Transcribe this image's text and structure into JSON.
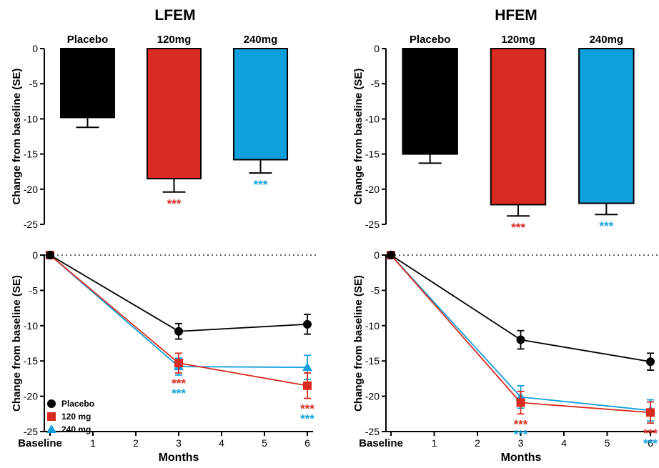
{
  "colors": {
    "placebo": "#000000",
    "mg120": "#d92b1f",
    "mg240": "#0ea0dd"
  },
  "chart_data": [
    {
      "id": "lfem-bar",
      "type": "bar",
      "title": "LFEM",
      "ylabel": "Change from baseline (SE)",
      "ylim": [
        -25,
        0
      ],
      "yticks": [
        0,
        -5,
        -10,
        -15,
        -20,
        -25
      ],
      "categories": [
        "Placebo",
        "120mg",
        "240mg"
      ],
      "values": [
        -9.8,
        -18.5,
        -15.8
      ],
      "errors": [
        1.4,
        1.9,
        1.9
      ],
      "significance": [
        "",
        "***",
        "***"
      ]
    },
    {
      "id": "hfem-bar",
      "type": "bar",
      "title": "HFEM",
      "ylabel": "Change from baseline (SE)",
      "ylim": [
        -25,
        0
      ],
      "yticks": [
        0,
        -5,
        -10,
        -15,
        -20,
        -25
      ],
      "categories": [
        "Placebo",
        "120mg",
        "240mg"
      ],
      "values": [
        -15.0,
        -22.2,
        -22.0
      ],
      "errors": [
        1.3,
        1.6,
        1.6
      ],
      "significance": [
        "",
        "***",
        "***"
      ]
    },
    {
      "id": "lfem-line",
      "type": "line",
      "xlabel": "Months",
      "ylabel": "Change from baseline (SE)",
      "ylim": [
        -25,
        0
      ],
      "yticks": [
        0,
        -5,
        -10,
        -15,
        -20,
        -25
      ],
      "xticks": [
        "Baseline",
        "1",
        "2",
        "3",
        "4",
        "5",
        "6"
      ],
      "x": [
        0,
        3,
        6
      ],
      "legend": "bottom-left",
      "series": [
        {
          "name": "Placebo",
          "marker": "circle",
          "values": [
            0,
            -10.8,
            -9.8
          ],
          "errors": [
            0,
            1.1,
            1.4
          ]
        },
        {
          "name": "120 mg",
          "marker": "square",
          "values": [
            0,
            -15.3,
            -18.5
          ],
          "errors": [
            0,
            1.4,
            1.8
          ]
        },
        {
          "name": "240 mg",
          "marker": "triangle",
          "values": [
            0,
            -15.8,
            -15.9
          ],
          "errors": [
            0,
            1.2,
            1.7
          ]
        }
      ],
      "significance": [
        {
          "x": 3,
          "labels": [
            "***",
            "***"
          ]
        },
        {
          "x": 6,
          "labels": [
            "***",
            "***"
          ]
        }
      ]
    },
    {
      "id": "hfem-line",
      "type": "line",
      "xlabel": "Months",
      "ylabel": "Change from baseline (SE)",
      "ylim": [
        -25,
        0
      ],
      "yticks": [
        0,
        -5,
        -10,
        -15,
        -20,
        -25
      ],
      "xticks": [
        "Baseline",
        "1",
        "2",
        "3",
        "4",
        "5",
        "6"
      ],
      "x": [
        0,
        3,
        6
      ],
      "series": [
        {
          "name": "Placebo",
          "marker": "circle",
          "values": [
            0,
            -12.0,
            -15.1
          ],
          "errors": [
            0,
            1.3,
            1.2
          ]
        },
        {
          "name": "120 mg",
          "marker": "square",
          "values": [
            0,
            -20.9,
            -22.3
          ],
          "errors": [
            0,
            1.6,
            1.5
          ]
        },
        {
          "name": "240 mg",
          "marker": "triangle",
          "values": [
            0,
            -20.1,
            -22.0
          ],
          "errors": [
            0,
            1.6,
            1.5
          ]
        }
      ],
      "significance": [
        {
          "x": 3,
          "labels": [
            "***",
            "***"
          ]
        },
        {
          "x": 6,
          "labels": [
            "***",
            "***"
          ]
        }
      ]
    }
  ]
}
